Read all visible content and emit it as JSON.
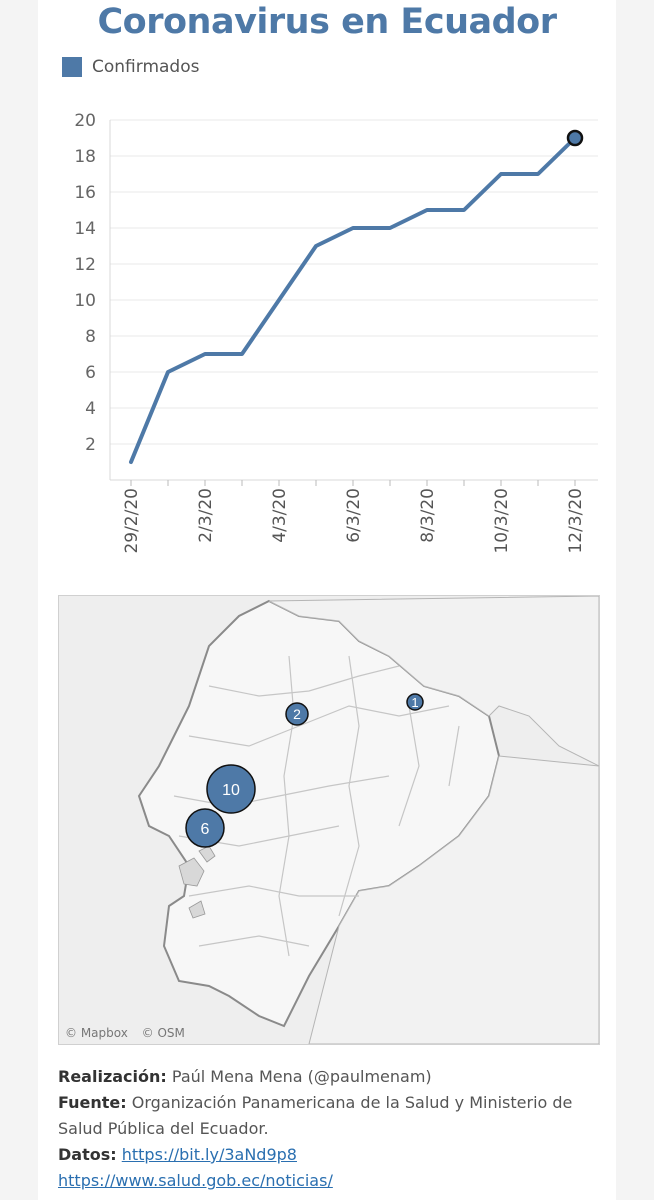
{
  "title": "Coronavirus en Ecuador",
  "legend": {
    "label": "Confirmados",
    "color": "#4e79a7"
  },
  "chart_data": {
    "type": "line",
    "series": [
      {
        "name": "Confirmados",
        "color": "#4e79a7",
        "x": [
          "29/2/20",
          "1/3/20",
          "2/3/20",
          "3/3/20",
          "4/3/20",
          "5/3/20",
          "6/3/20",
          "7/3/20",
          "8/3/20",
          "9/3/20",
          "10/3/20",
          "11/3/20",
          "12/3/20"
        ],
        "values": [
          1,
          6,
          7,
          7,
          10,
          13,
          14,
          14,
          15,
          15,
          17,
          17,
          19
        ]
      }
    ],
    "x_tick_labels": [
      "29/2/20",
      "2/3/20",
      "4/3/20",
      "6/3/20",
      "8/3/20",
      "10/3/20",
      "12/3/20"
    ],
    "y_ticks": [
      2,
      4,
      6,
      8,
      10,
      12,
      14,
      16,
      18,
      20
    ],
    "ylim": [
      0,
      20
    ],
    "grid": true,
    "legend_position": "top-left",
    "highlight_last_point": true
  },
  "map": {
    "bubbles": [
      {
        "label": "1",
        "value": 1
      },
      {
        "label": "2",
        "value": 2
      },
      {
        "label": "10",
        "value": 10
      },
      {
        "label": "6",
        "value": 6
      }
    ],
    "credits": [
      "© Mapbox",
      "© OSM"
    ]
  },
  "footer": {
    "realizacion_label": "Realización:",
    "realizacion_value": "Paúl Mena Mena (@paulmenam)",
    "fuente_label": "Fuente:",
    "fuente_value": "Organización Panamericana de la Salud y Ministerio de Salud Pública del Ecuador.",
    "datos_label": "Datos:",
    "datos_link": "https://bit.ly/3aNd9p8",
    "link2": "https://www.salud.gob.ec/noticias/"
  }
}
